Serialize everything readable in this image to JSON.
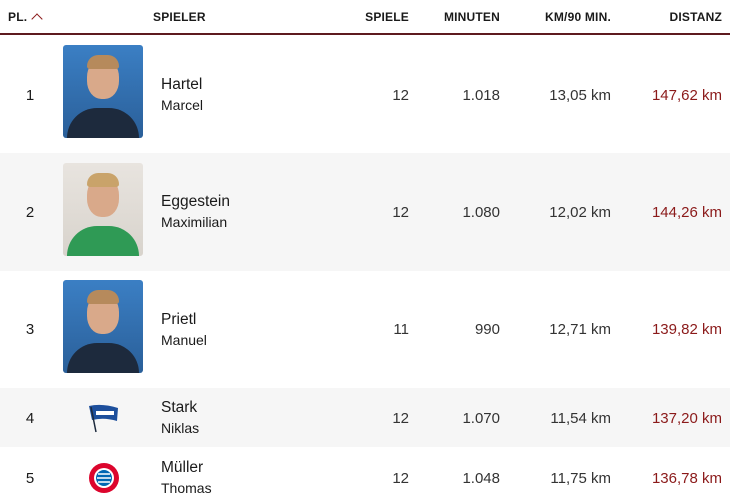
{
  "header": {
    "rank": "PL.",
    "player": "SPIELER",
    "games": "SPIELE",
    "minutes": "MINUTEN",
    "km90": "KM/90 MIN.",
    "distance": "DISTANZ",
    "sort_icon": "chevron-up-icon"
  },
  "colors": {
    "accent": "#8b1a1a",
    "divider": "#5e1a1f"
  },
  "rows": [
    {
      "rank": "1",
      "last": "Hartel",
      "first": "Marcel",
      "games": "12",
      "minutes": "1.018",
      "km90": "13,05 km",
      "distance": "147,62 km"
    },
    {
      "rank": "2",
      "last": "Eggestein",
      "first": "Maximilian",
      "games": "12",
      "minutes": "1.080",
      "km90": "12,02 km",
      "distance": "144,26 km"
    },
    {
      "rank": "3",
      "last": "Prietl",
      "first": "Manuel",
      "games": "11",
      "minutes": "990",
      "km90": "12,71 km",
      "distance": "139,82 km"
    },
    {
      "rank": "4",
      "last": "Stark",
      "first": "Niklas",
      "games": "12",
      "minutes": "1.070",
      "km90": "11,54 km",
      "distance": "137,20 km"
    },
    {
      "rank": "5",
      "last": "Müller",
      "first": "Thomas",
      "games": "12",
      "minutes": "1.048",
      "km90": "11,75 km",
      "distance": "136,78 km"
    }
  ]
}
